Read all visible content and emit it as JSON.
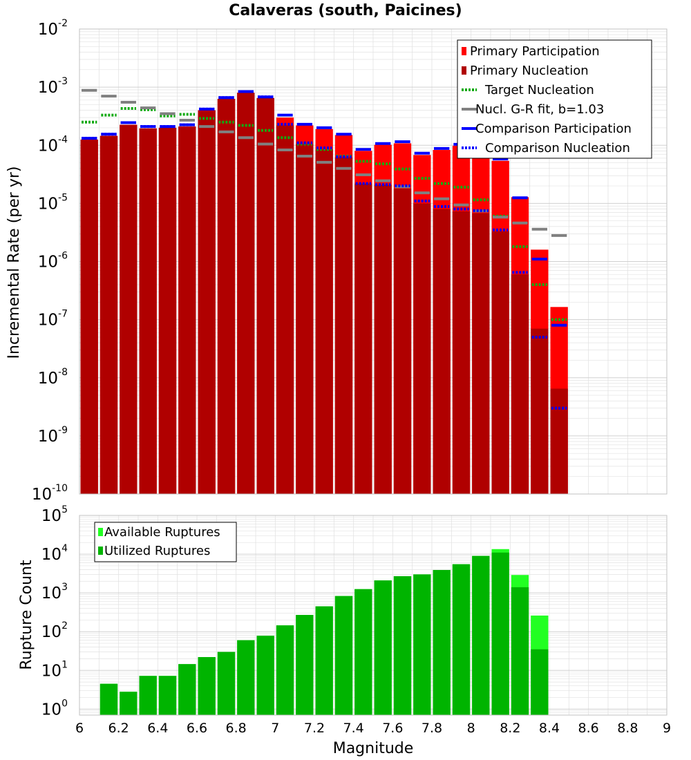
{
  "colors": {
    "primary_participation": "#ff0000",
    "primary_nucleation": "#b00000",
    "target_nucleation": "#11aa11",
    "gr_fit": "#808080",
    "comparison": "#0000ff",
    "available": "#22ff22",
    "utilized": "#00b400",
    "grid": "#e2e2e2"
  },
  "chart_data": [
    {
      "type": "bar",
      "title": "Calaveras (south, Paicines)",
      "xlabel": "",
      "ylabel": "Incremental Rate (per yr)",
      "ylog": true,
      "xlim": [
        6,
        9
      ],
      "ylim": [
        1e-10,
        0.01
      ],
      "y_ticks": [
        {
          "base": "10",
          "exp": "-10"
        },
        {
          "base": "10",
          "exp": "-9"
        },
        {
          "base": "10",
          "exp": "-8"
        },
        {
          "base": "10",
          "exp": "-7"
        },
        {
          "base": "10",
          "exp": "-6"
        },
        {
          "base": "10",
          "exp": "-5"
        },
        {
          "base": "10",
          "exp": "-4"
        },
        {
          "base": "10",
          "exp": "-3"
        },
        {
          "base": "10",
          "exp": "-2"
        }
      ],
      "grid": true,
      "legend_position": "top-right",
      "bin_width": 0.1,
      "x": [
        6.05,
        6.15,
        6.25,
        6.35,
        6.45,
        6.55,
        6.65,
        6.75,
        6.85,
        6.95,
        7.05,
        7.15,
        7.25,
        7.35,
        7.45,
        7.55,
        7.65,
        7.75,
        7.85,
        7.95,
        8.05,
        8.15,
        8.25,
        8.35,
        8.45
      ],
      "series": [
        {
          "name": "Primary Participation",
          "style": "bar",
          "color": "#ff0000",
          "values": [
            0.000125,
            0.000145,
            0.000225,
            0.000195,
            0.0002,
            0.00021,
            0.0004,
            0.00063,
            0.0008,
            0.00065,
            0.0003,
            0.00022,
            0.00019,
            0.00015,
            8e-05,
            0.000102,
            0.000108,
            6.8e-05,
            8.3e-05,
            9.8e-05,
            0.000122,
            5.4e-05,
            1.28e-05,
            1.6e-06,
            1.65e-07
          ]
        },
        {
          "name": "Primary Nucleation",
          "style": "bar",
          "color": "#b00000",
          "values": [
            0.000125,
            0.000145,
            0.000225,
            0.000195,
            0.0002,
            0.00021,
            0.0004,
            0.00063,
            0.0008,
            0.00065,
            0.00022,
            0.000105,
            8.5e-05,
            6.2e-05,
            2.2e-05,
            2.1e-05,
            1.8e-05,
            1e-05,
            8e-06,
            7.3e-06,
            6.8e-06,
            3.3e-06,
            6e-07,
            7e-08,
            6.5e-09
          ]
        },
        {
          "name": "Target Nucleation",
          "style": "dotted",
          "color": "#11aa11",
          "values": [
            0.00025,
            0.00033,
            0.00043,
            0.00041,
            0.00032,
            0.00034,
            0.00029,
            0.00025,
            0.00022,
            0.00018,
            0.000135,
            0.000105,
            8.5e-05,
            6.5e-05,
            5.3e-05,
            4.8e-05,
            3.9e-05,
            2.7e-05,
            2.2e-05,
            1.9e-05,
            1.15e-05,
            6e-06,
            1.8e-06,
            4e-07,
            1e-07
          ]
        },
        {
          "name": "Nucl. G-R fit, b=1.03",
          "style": "line",
          "color": "#808080",
          "values": [
            0.00088,
            0.0007,
            0.00055,
            0.00044,
            0.00035,
            0.00027,
            0.00021,
            0.00017,
            0.000135,
            0.000105,
            8.3e-05,
            6.5e-05,
            5.1e-05,
            4e-05,
            3.1e-05,
            2.45e-05,
            1.93e-05,
            1.52e-05,
            1.2e-05,
            9.4e-06,
            7.4e-06,
            5.8e-06,
            4.6e-06,
            3.6e-06,
            2.8e-06
          ]
        },
        {
          "name": "Comparison Participation",
          "style": "line",
          "color": "#0000ff",
          "values": [
            0.000132,
            0.000155,
            0.000245,
            0.00021,
            0.00021,
            0.000225,
            0.00042,
            0.00066,
            0.00084,
            0.00068,
            0.00033,
            0.00023,
            0.0002,
            0.000155,
            8.5e-05,
            0.000107,
            0.000115,
            7.3e-05,
            8.8e-05,
            0.000104,
            0.00013,
            5.8e-05,
            1.25e-05,
            1.1e-06,
            8e-08
          ]
        },
        {
          "name": "Comparison Nucleation",
          "style": "dotted",
          "color": "#0000ff",
          "values": [
            0.000132,
            0.000155,
            0.000245,
            0.00021,
            0.00021,
            0.000225,
            0.00042,
            0.00066,
            0.00084,
            0.00068,
            0.00023,
            0.00011,
            9e-05,
            6.3e-05,
            2.2e-05,
            2.1e-05,
            2e-05,
            1.1e-05,
            8.8e-06,
            8e-06,
            7.5e-06,
            3.5e-06,
            6.5e-07,
            5e-08,
            3e-09
          ]
        }
      ]
    },
    {
      "type": "bar",
      "title": "",
      "xlabel": "Magnitude",
      "ylabel": "Rupture Count",
      "ylog": true,
      "xlim": [
        6,
        9
      ],
      "ylim": [
        0.7,
        100000
      ],
      "x_ticks": [
        "6",
        "6.2",
        "6.4",
        "6.6",
        "6.8",
        "7",
        "7.2",
        "7.4",
        "7.6",
        "7.8",
        "8",
        "8.2",
        "8.4",
        "8.6",
        "8.8",
        "9"
      ],
      "y_ticks": [
        {
          "base": "10",
          "exp": "0"
        },
        {
          "base": "10",
          "exp": "1"
        },
        {
          "base": "10",
          "exp": "2"
        },
        {
          "base": "10",
          "exp": "3"
        },
        {
          "base": "10",
          "exp": "4"
        },
        {
          "base": "10",
          "exp": "5"
        }
      ],
      "grid": true,
      "legend_position": "top-left",
      "bin_width": 0.1,
      "x": [
        6.05,
        6.15,
        6.25,
        6.35,
        6.45,
        6.55,
        6.65,
        6.75,
        6.85,
        6.95,
        7.05,
        7.15,
        7.25,
        7.35,
        7.45,
        7.55,
        7.65,
        7.75,
        7.85,
        7.95,
        8.05,
        8.15,
        8.25,
        8.35,
        8.45
      ],
      "series": [
        {
          "name": "Available Ruptures",
          "style": "bar",
          "color": "#22ff22",
          "values": [
            0,
            4.5,
            2.8,
            7.2,
            7.2,
            14.5,
            22,
            30,
            60,
            78,
            145,
            270,
            450,
            830,
            1250,
            2100,
            2700,
            3000,
            3900,
            5500,
            9000,
            13500,
            2900,
            260,
            0
          ]
        },
        {
          "name": "Utilized Ruptures",
          "style": "bar",
          "color": "#00b400",
          "values": [
            0,
            4.5,
            2.8,
            7.2,
            7.2,
            14.5,
            22,
            30,
            60,
            78,
            145,
            270,
            450,
            830,
            1250,
            2100,
            2700,
            3000,
            3900,
            5500,
            9000,
            11000,
            1400,
            35,
            0
          ]
        }
      ]
    }
  ]
}
